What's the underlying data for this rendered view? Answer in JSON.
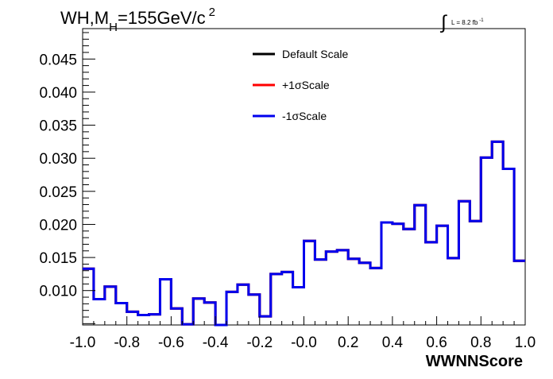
{
  "chart_data": {
    "type": "line",
    "step": true,
    "title_main": "WH,M",
    "title_sub": "H",
    "title_rest": "=155GeV/c",
    "title_sup": "2",
    "lumi_text": "L = 8.2 fb",
    "lumi_sup": "-1",
    "xlabel": "WWNNScore",
    "ylabel": "",
    "xlim": [
      -1.0,
      1.0
    ],
    "ylim": [
      0.0048,
      0.0496
    ],
    "x_ticks": [
      "-1.0",
      "-0.8",
      "-0.6",
      "-0.4",
      "-0.2",
      "-0.0",
      "0.2",
      "0.4",
      "0.6",
      "0.8",
      "1.0"
    ],
    "x_tick_values": [
      -1.0,
      -0.8,
      -0.6,
      -0.4,
      -0.2,
      0.0,
      0.2,
      0.4,
      0.6,
      0.8,
      1.0
    ],
    "y_ticks": [
      "0.010",
      "0.015",
      "0.020",
      "0.025",
      "0.030",
      "0.035",
      "0.040",
      "0.045"
    ],
    "y_tick_values": [
      0.01,
      0.015,
      0.02,
      0.025,
      0.03,
      0.035,
      0.04,
      0.045
    ],
    "bin_edges": [
      -1.0,
      -0.95,
      -0.9,
      -0.85,
      -0.8,
      -0.75,
      -0.7,
      -0.65,
      -0.6,
      -0.55,
      -0.5,
      -0.45,
      -0.4,
      -0.35,
      -0.3,
      -0.25,
      -0.2,
      -0.15,
      -0.1,
      -0.05,
      0.0,
      0.05,
      0.1,
      0.15,
      0.2,
      0.25,
      0.3,
      0.35,
      0.4,
      0.45,
      0.5,
      0.55,
      0.6,
      0.65,
      0.7,
      0.75,
      0.8,
      0.85,
      0.9,
      0.95,
      1.0
    ],
    "series": [
      {
        "name": "Default Scale",
        "color": "#000000",
        "values": [
          0.0133,
          0.0087,
          0.0106,
          0.0081,
          0.0068,
          0.0063,
          0.0064,
          0.0117,
          0.0073,
          0.0049,
          0.0088,
          0.0082,
          0.0048,
          0.0098,
          0.0109,
          0.0094,
          0.0061,
          0.0125,
          0.0128,
          0.0105,
          0.0175,
          0.0147,
          0.0159,
          0.0161,
          0.0148,
          0.0142,
          0.0134,
          0.0203,
          0.0201,
          0.0193,
          0.0229,
          0.0173,
          0.0198,
          0.0149,
          0.0235,
          0.0205,
          0.0301,
          0.0325,
          0.0284,
          0.0145
        ]
      },
      {
        "name": "+1σScale",
        "color": "#ff0000",
        "values": [
          0.0133,
          0.0087,
          0.0106,
          0.0081,
          0.0068,
          0.0063,
          0.0064,
          0.0117,
          0.0073,
          0.0049,
          0.0088,
          0.0082,
          0.0048,
          0.0098,
          0.0109,
          0.0094,
          0.0061,
          0.0125,
          0.0128,
          0.0105,
          0.0175,
          0.0147,
          0.0159,
          0.0161,
          0.0148,
          0.0142,
          0.0134,
          0.0203,
          0.0201,
          0.0193,
          0.0229,
          0.0173,
          0.0198,
          0.0149,
          0.0235,
          0.0205,
          0.0301,
          0.0325,
          0.0284,
          0.0145
        ]
      },
      {
        "name": "-1σScale",
        "color": "#0000ee",
        "values": [
          0.0133,
          0.0087,
          0.0106,
          0.0081,
          0.0068,
          0.0063,
          0.0064,
          0.0117,
          0.0073,
          0.0049,
          0.0088,
          0.0082,
          0.0048,
          0.0098,
          0.0109,
          0.0094,
          0.0061,
          0.0125,
          0.0128,
          0.0105,
          0.0175,
          0.0147,
          0.0159,
          0.0161,
          0.0148,
          0.0142,
          0.0134,
          0.0203,
          0.0201,
          0.0193,
          0.0229,
          0.0173,
          0.0198,
          0.0149,
          0.0235,
          0.0205,
          0.0301,
          0.0325,
          0.0284,
          0.0145
        ]
      }
    ],
    "legend_position": "top-center",
    "grid": false
  }
}
